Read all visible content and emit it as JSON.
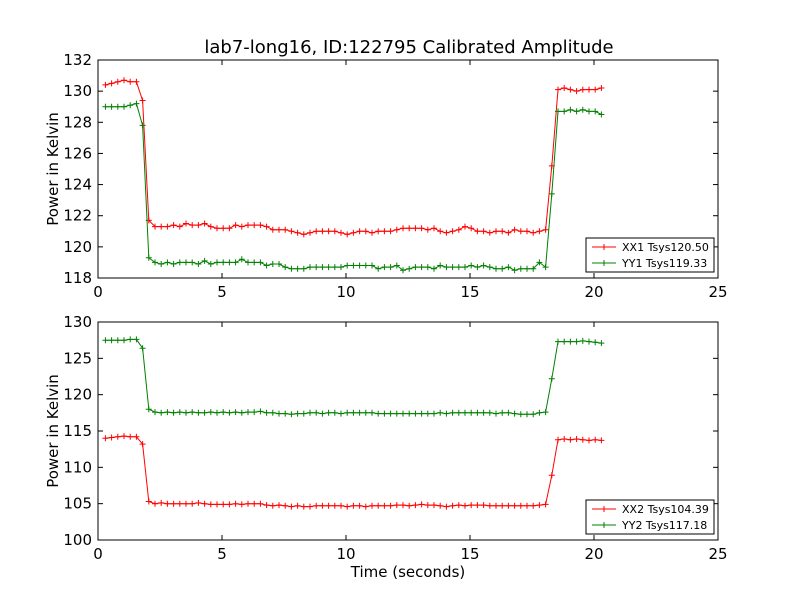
{
  "chart_data": [
    {
      "type": "line",
      "title": "lab7-long16, ID:122795 Calibrated Amplitude",
      "xlabel": "",
      "ylabel": "Power in Kelvin",
      "xlim": [
        0,
        25
      ],
      "ylim": [
        118,
        132
      ],
      "xticks": [
        "0",
        "5",
        "10",
        "15",
        "20",
        "25"
      ],
      "yticks": [
        "118",
        "120",
        "122",
        "124",
        "126",
        "128",
        "130",
        "132"
      ],
      "grid": false,
      "legend_position": "lower-right",
      "x": [
        0.3,
        0.55,
        0.8,
        1.05,
        1.3,
        1.55,
        1.8,
        2.05,
        2.3,
        2.55,
        2.8,
        3.05,
        3.3,
        3.55,
        3.8,
        4.05,
        4.3,
        4.55,
        4.8,
        5.05,
        5.3,
        5.55,
        5.8,
        6.05,
        6.3,
        6.55,
        6.8,
        7.05,
        7.3,
        7.55,
        7.8,
        8.05,
        8.3,
        8.55,
        8.8,
        9.05,
        9.3,
        9.55,
        9.8,
        10.05,
        10.3,
        10.55,
        10.8,
        11.05,
        11.3,
        11.55,
        11.8,
        12.05,
        12.3,
        12.55,
        12.8,
        13.05,
        13.3,
        13.55,
        13.8,
        14.05,
        14.3,
        14.55,
        14.8,
        15.05,
        15.3,
        15.55,
        15.8,
        16.05,
        16.3,
        16.55,
        16.8,
        17.05,
        17.3,
        17.55,
        17.8,
        18.05,
        18.3,
        18.55,
        18.8,
        19.05,
        19.3,
        19.55,
        19.8,
        20.05,
        20.3
      ],
      "series": [
        {
          "name": "XX1 Tsys120.50",
          "color": "#ff0000",
          "values": [
            130.4,
            130.5,
            130.6,
            130.7,
            130.6,
            130.6,
            129.4,
            121.7,
            121.3,
            121.3,
            121.3,
            121.4,
            121.3,
            121.5,
            121.4,
            121.4,
            121.5,
            121.3,
            121.2,
            121.2,
            121.2,
            121.4,
            121.3,
            121.4,
            121.4,
            121.4,
            121.3,
            121.1,
            121.1,
            121.1,
            121.0,
            120.9,
            120.8,
            120.9,
            121.0,
            121.0,
            121.0,
            121.0,
            120.9,
            120.8,
            120.9,
            121.0,
            121.0,
            120.9,
            121.0,
            121.0,
            121.0,
            121.1,
            121.2,
            121.2,
            121.2,
            121.2,
            121.1,
            121.2,
            121.0,
            120.9,
            121.0,
            121.1,
            121.3,
            121.2,
            121.0,
            121.0,
            120.9,
            121.0,
            121.0,
            120.9,
            121.1,
            121.0,
            121.0,
            120.9,
            121.0,
            121.1,
            125.2,
            130.1,
            130.2,
            130.1,
            130.0,
            130.1,
            130.1,
            130.1,
            130.2
          ]
        },
        {
          "name": "YY1 Tsys119.33",
          "color": "#008000",
          "values": [
            129.0,
            129.0,
            129.0,
            129.0,
            129.1,
            129.2,
            127.8,
            119.3,
            119.0,
            118.9,
            119.0,
            118.9,
            119.0,
            119.0,
            119.0,
            118.9,
            119.1,
            118.9,
            119.0,
            119.0,
            119.0,
            119.0,
            119.2,
            119.0,
            119.0,
            119.0,
            118.8,
            118.9,
            118.9,
            118.7,
            118.6,
            118.6,
            118.6,
            118.7,
            118.7,
            118.7,
            118.7,
            118.7,
            118.7,
            118.8,
            118.8,
            118.8,
            118.8,
            118.8,
            118.6,
            118.7,
            118.7,
            118.8,
            118.5,
            118.6,
            118.7,
            118.7,
            118.7,
            118.6,
            118.8,
            118.7,
            118.7,
            118.7,
            118.7,
            118.8,
            118.7,
            118.8,
            118.7,
            118.6,
            118.6,
            118.7,
            118.5,
            118.6,
            118.6,
            118.6,
            119.0,
            118.7,
            123.4,
            128.7,
            128.7,
            128.8,
            128.7,
            128.8,
            128.7,
            128.7,
            128.5
          ]
        }
      ]
    },
    {
      "type": "line",
      "title": "",
      "xlabel": "Time (seconds)",
      "ylabel": "Power in Kelvin",
      "xlim": [
        0,
        25
      ],
      "ylim": [
        100,
        130
      ],
      "xticks": [
        "0",
        "5",
        "10",
        "15",
        "20",
        "25"
      ],
      "yticks": [
        "100",
        "105",
        "110",
        "115",
        "120",
        "125",
        "130"
      ],
      "grid": false,
      "legend_position": "lower-right",
      "x": [
        0.3,
        0.55,
        0.8,
        1.05,
        1.3,
        1.55,
        1.8,
        2.05,
        2.3,
        2.55,
        2.8,
        3.05,
        3.3,
        3.55,
        3.8,
        4.05,
        4.3,
        4.55,
        4.8,
        5.05,
        5.3,
        5.55,
        5.8,
        6.05,
        6.3,
        6.55,
        6.8,
        7.05,
        7.3,
        7.55,
        7.8,
        8.05,
        8.3,
        8.55,
        8.8,
        9.05,
        9.3,
        9.55,
        9.8,
        10.05,
        10.3,
        10.55,
        10.8,
        11.05,
        11.3,
        11.55,
        11.8,
        12.05,
        12.3,
        12.55,
        12.8,
        13.05,
        13.3,
        13.55,
        13.8,
        14.05,
        14.3,
        14.55,
        14.8,
        15.05,
        15.3,
        15.55,
        15.8,
        16.05,
        16.3,
        16.55,
        16.8,
        17.05,
        17.3,
        17.55,
        17.8,
        18.05,
        18.3,
        18.55,
        18.8,
        19.05,
        19.3,
        19.55,
        19.8,
        20.05,
        20.3
      ],
      "series": [
        {
          "name": "XX2 Tsys104.39",
          "color": "#ff0000",
          "values": [
            114.0,
            114.1,
            114.2,
            114.3,
            114.2,
            114.2,
            113.2,
            105.3,
            105.0,
            105.1,
            105.0,
            105.0,
            105.0,
            105.0,
            105.0,
            105.1,
            105.0,
            104.9,
            104.9,
            104.9,
            104.9,
            105.0,
            104.9,
            105.0,
            105.0,
            105.0,
            104.8,
            104.7,
            104.8,
            104.7,
            104.6,
            104.7,
            104.6,
            104.6,
            104.7,
            104.7,
            104.7,
            104.7,
            104.7,
            104.6,
            104.7,
            104.7,
            104.6,
            104.7,
            104.7,
            104.7,
            104.7,
            104.8,
            104.8,
            104.7,
            104.8,
            104.9,
            104.8,
            104.8,
            104.7,
            104.6,
            104.7,
            104.8,
            104.7,
            104.8,
            104.8,
            104.8,
            104.7,
            104.7,
            104.7,
            104.7,
            104.7,
            104.7,
            104.7,
            104.7,
            104.8,
            104.9,
            108.9,
            113.8,
            113.9,
            113.8,
            113.9,
            113.8,
            113.7,
            113.8,
            113.7
          ]
        },
        {
          "name": "YY2 Tsys117.18",
          "color": "#008000",
          "values": [
            127.5,
            127.5,
            127.5,
            127.5,
            127.6,
            127.6,
            126.4,
            118.0,
            117.6,
            117.5,
            117.6,
            117.5,
            117.6,
            117.5,
            117.6,
            117.5,
            117.5,
            117.6,
            117.5,
            117.6,
            117.5,
            117.6,
            117.5,
            117.6,
            117.6,
            117.7,
            117.5,
            117.5,
            117.4,
            117.4,
            117.3,
            117.4,
            117.4,
            117.5,
            117.5,
            117.4,
            117.5,
            117.5,
            117.4,
            117.5,
            117.5,
            117.5,
            117.5,
            117.5,
            117.4,
            117.4,
            117.4,
            117.4,
            117.4,
            117.4,
            117.4,
            117.4,
            117.4,
            117.4,
            117.5,
            117.4,
            117.5,
            117.5,
            117.5,
            117.5,
            117.5,
            117.5,
            117.5,
            117.4,
            117.5,
            117.5,
            117.4,
            117.3,
            117.3,
            117.3,
            117.5,
            117.6,
            122.2,
            127.3,
            127.3,
            127.3,
            127.3,
            127.4,
            127.3,
            127.2,
            127.1
          ]
        }
      ]
    }
  ]
}
